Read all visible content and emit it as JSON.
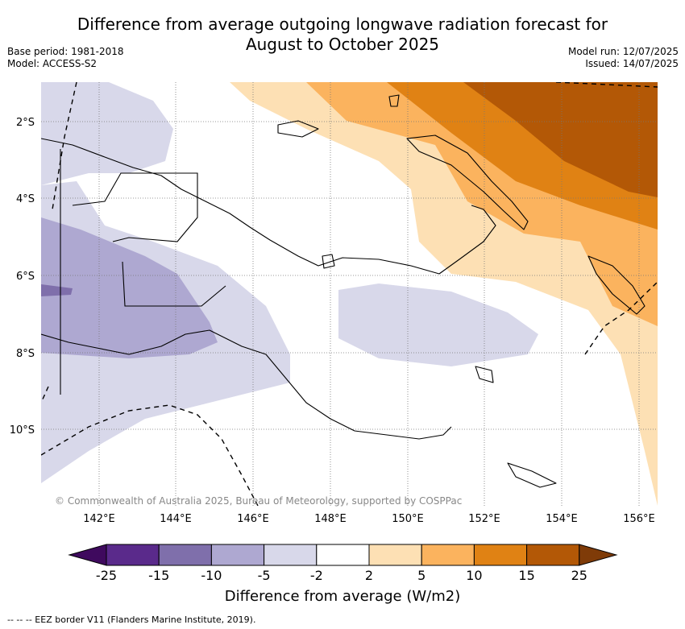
{
  "title_line1": "Difference from average outgoing longwave radiation forecast for",
  "title_line2": "August to October 2025",
  "meta_left": [
    "Base period: 1981-2018",
    "Model: ACCESS-S2"
  ],
  "meta_right": [
    "Model run: 12/07/2025",
    "Issued: 14/07/2025"
  ],
  "lat_labels": [
    "2°S",
    "4°S",
    "6°S",
    "8°S",
    "10°S"
  ],
  "lon_labels": [
    "142°E",
    "144°E",
    "146°E",
    "148°E",
    "150°E",
    "152°E",
    "154°E",
    "156°E"
  ],
  "copyright": "© Commonwealth of Australia 2025, Bureau of Meteorology, supported by COSPPac",
  "colorbar": {
    "ticks": [
      "-25",
      "-15",
      "-10",
      "-5",
      "-2",
      "2",
      "5",
      "10",
      "15",
      "25"
    ],
    "colors": [
      "#3f0a5e",
      "#5a2a8b",
      "#7f6fab",
      "#aea8d1",
      "#d8d8ea",
      "#ffffff",
      "#fde0b4",
      "#fbb35e",
      "#e08214",
      "#b35806",
      "#7f3b08"
    ],
    "label": "Difference from average (W/m2)"
  },
  "legend_note": "--  --  -- EEZ border V11 (Flanders Marine Institute, 2019)."
}
